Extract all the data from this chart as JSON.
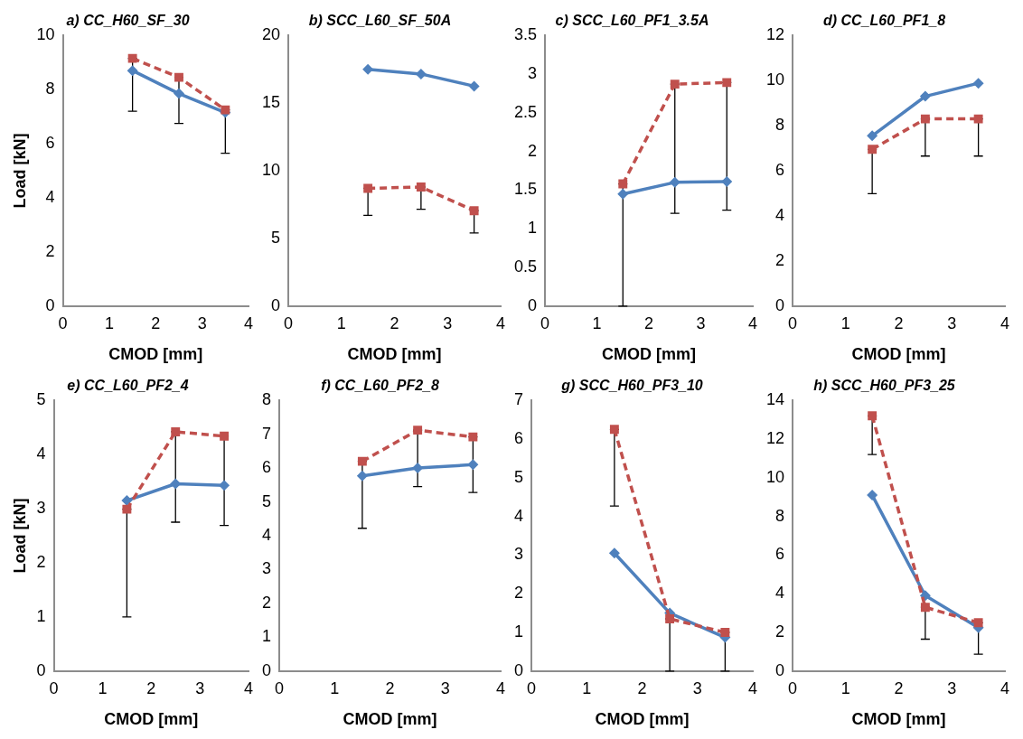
{
  "chart_data": [
    {
      "type": "line",
      "title": "a) CC_H60_SF_30",
      "xlabel": "CMOD [mm]",
      "ylabel": "Load [kN]",
      "xlim": [
        0,
        4
      ],
      "xticks": [
        0,
        1,
        2,
        3,
        4
      ],
      "ylim": [
        0,
        10
      ],
      "yticks": [
        0,
        2,
        4,
        6,
        8,
        10
      ],
      "series": [
        {
          "color": "#4f81bd",
          "marker": "diamond",
          "line_style": "solid",
          "x": [
            1.5,
            2.5,
            3.5
          ],
          "values": [
            8.7,
            7.85,
            7.15
          ]
        },
        {
          "color": "#c0504d",
          "marker": "square",
          "line_style": "dashed",
          "x": [
            1.5,
            2.5,
            3.5
          ],
          "values": [
            9.15,
            8.45,
            7.25
          ],
          "errors": [
            [
              7.2,
              9.15
            ],
            [
              6.75,
              8.45
            ],
            [
              5.65,
              7.25
            ]
          ]
        }
      ]
    },
    {
      "type": "line",
      "title": "b) SCC_L60_SF_50A",
      "xlabel": "CMOD [mm]",
      "xlim": [
        0,
        4
      ],
      "xticks": [
        0,
        1,
        2,
        3,
        4
      ],
      "ylim": [
        0,
        20
      ],
      "yticks": [
        0,
        5,
        10,
        15,
        20
      ],
      "series": [
        {
          "color": "#4f81bd",
          "marker": "diamond",
          "line_style": "solid",
          "x": [
            1.5,
            2.5,
            3.5
          ],
          "values": [
            17.5,
            17.15,
            16.25
          ]
        },
        {
          "color": "#c0504d",
          "marker": "square",
          "line_style": "dashed",
          "x": [
            1.5,
            2.5,
            3.5
          ],
          "values": [
            8.7,
            8.8,
            7.05
          ],
          "errors": [
            [
              6.7,
              8.7
            ],
            [
              7.15,
              8.8
            ],
            [
              5.4,
              7.05
            ]
          ]
        }
      ]
    },
    {
      "type": "line",
      "title": "c) SCC_L60_PF1_3.5A",
      "xlabel": "CMOD [mm]",
      "xlim": [
        0,
        4
      ],
      "xticks": [
        0,
        1,
        2,
        3,
        4
      ],
      "ylim": [
        0,
        3.5
      ],
      "yticks": [
        0,
        0.5,
        1,
        1.5,
        2,
        2.5,
        3,
        3.5
      ],
      "series": [
        {
          "color": "#4f81bd",
          "marker": "diamond",
          "line_style": "solid",
          "x": [
            1.5,
            2.5,
            3.5
          ],
          "values": [
            1.45,
            1.6,
            1.61
          ]
        },
        {
          "color": "#c0504d",
          "marker": "square",
          "line_style": "dashed",
          "x": [
            1.5,
            2.5,
            3.5
          ],
          "values": [
            1.58,
            2.87,
            2.89
          ],
          "errors": [
            [
              0,
              1.58
            ],
            [
              1.2,
              2.87
            ],
            [
              1.24,
              2.89
            ]
          ]
        }
      ]
    },
    {
      "type": "line",
      "title": "d) CC_L60_PF1_8",
      "xlabel": "CMOD [mm]",
      "xlim": [
        0,
        4
      ],
      "xticks": [
        0,
        1,
        2,
        3,
        4
      ],
      "ylim": [
        0,
        12
      ],
      "yticks": [
        0,
        2,
        4,
        6,
        8,
        10,
        12
      ],
      "series": [
        {
          "color": "#4f81bd",
          "marker": "diamond",
          "line_style": "solid",
          "x": [
            1.5,
            2.5,
            3.5
          ],
          "values": [
            7.55,
            9.3,
            9.88
          ]
        },
        {
          "color": "#c0504d",
          "marker": "square",
          "line_style": "dashed",
          "x": [
            1.5,
            2.5,
            3.5
          ],
          "values": [
            6.95,
            8.3,
            8.3
          ],
          "errors": [
            [
              4.98,
              6.95
            ],
            [
              6.65,
              8.3
            ],
            [
              6.65,
              8.3
            ]
          ]
        }
      ]
    },
    {
      "type": "line",
      "title": "e) CC_L60_PF2_4",
      "xlabel": "CMOD [mm]",
      "ylabel": "Load [kN]",
      "xlim": [
        0,
        4
      ],
      "xticks": [
        0,
        1,
        2,
        3,
        4
      ],
      "ylim": [
        0,
        5
      ],
      "yticks": [
        0,
        1,
        2,
        3,
        4,
        5
      ],
      "series": [
        {
          "color": "#4f81bd",
          "marker": "diamond",
          "line_style": "solid",
          "x": [
            1.5,
            2.5,
            3.5
          ],
          "values": [
            3.15,
            3.46,
            3.43
          ]
        },
        {
          "color": "#c0504d",
          "marker": "square",
          "line_style": "dashed",
          "x": [
            1.5,
            2.5,
            3.5
          ],
          "values": [
            2.99,
            4.42,
            4.34
          ],
          "errors": [
            [
              1.0,
              2.99
            ],
            [
              2.75,
              4.42
            ],
            [
              2.69,
              4.34
            ]
          ]
        }
      ]
    },
    {
      "type": "line",
      "title": "f) CC_L60_PF2_8",
      "xlabel": "CMOD [mm]",
      "xlim": [
        0,
        4
      ],
      "xticks": [
        0,
        1,
        2,
        3,
        4
      ],
      "ylim": [
        0,
        8
      ],
      "yticks": [
        0,
        1,
        2,
        3,
        4,
        5,
        6,
        7,
        8
      ],
      "series": [
        {
          "color": "#4f81bd",
          "marker": "diamond",
          "line_style": "solid",
          "x": [
            1.5,
            2.5,
            3.5
          ],
          "values": [
            5.77,
            6.0,
            6.1
          ]
        },
        {
          "color": "#c0504d",
          "marker": "square",
          "line_style": "dashed",
          "x": [
            1.5,
            2.5,
            3.5
          ],
          "values": [
            6.2,
            7.12,
            6.92
          ],
          "errors": [
            [
              4.22,
              6.2
            ],
            [
              5.45,
              7.12
            ],
            [
              5.28,
              6.92
            ]
          ]
        }
      ]
    },
    {
      "type": "line",
      "title": "g) SCC_H60_PF3_10",
      "xlabel": "CMOD [mm]",
      "xlim": [
        0,
        4
      ],
      "xticks": [
        0,
        1,
        2,
        3,
        4
      ],
      "ylim": [
        0,
        7
      ],
      "yticks": [
        0,
        1,
        2,
        3,
        4,
        5,
        6,
        7
      ],
      "series": [
        {
          "color": "#4f81bd",
          "marker": "diamond",
          "line_style": "solid",
          "x": [
            1.5,
            2.5,
            3.5
          ],
          "values": [
            3.05,
            1.5,
            0.87
          ]
        },
        {
          "color": "#c0504d",
          "marker": "square",
          "line_style": "dashed",
          "x": [
            1.5,
            2.5,
            3.5
          ],
          "values": [
            6.25,
            1.35,
            1.0
          ],
          "errors": [
            [
              4.27,
              6.25
            ],
            [
              0,
              1.35
            ],
            [
              0,
              1.0
            ]
          ]
        }
      ]
    },
    {
      "type": "line",
      "title": "h) SCC_H60_PF3_25",
      "xlabel": "CMOD [mm]",
      "xlim": [
        0,
        4
      ],
      "xticks": [
        0,
        1,
        2,
        3,
        4
      ],
      "ylim": [
        0,
        14
      ],
      "yticks": [
        0,
        2,
        4,
        6,
        8,
        10,
        12,
        14
      ],
      "series": [
        {
          "color": "#4f81bd",
          "marker": "diamond",
          "line_style": "solid",
          "x": [
            1.5,
            2.5,
            3.5
          ],
          "values": [
            9.1,
            3.9,
            2.25
          ]
        },
        {
          "color": "#c0504d",
          "marker": "square",
          "line_style": "dashed",
          "x": [
            1.5,
            2.5,
            3.5
          ],
          "values": [
            13.2,
            3.3,
            2.5
          ],
          "errors": [
            [
              11.2,
              13.2
            ],
            [
              1.65,
              3.3
            ],
            [
              0.87,
              2.5
            ]
          ]
        }
      ]
    }
  ]
}
